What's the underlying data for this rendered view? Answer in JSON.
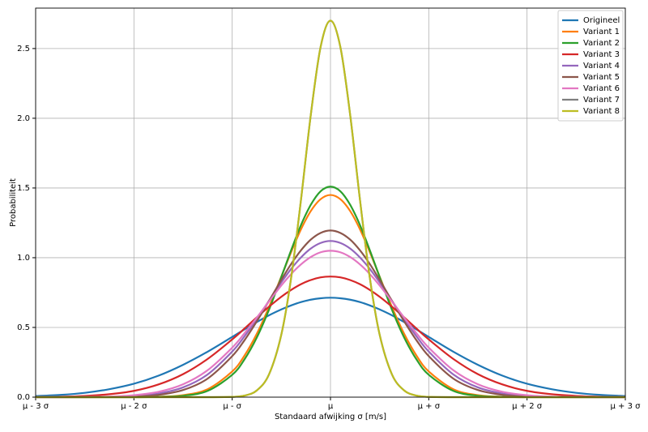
{
  "chart_data": {
    "type": "line",
    "xlabel": "Standaard afwijking σ [m/s]",
    "ylabel": "Probabiliteit",
    "x": [
      -3,
      -2.75,
      -2.5,
      -2.25,
      -2,
      -1.75,
      -1.5,
      -1.25,
      -1,
      -0.875,
      -0.75,
      -0.625,
      -0.5,
      -0.4,
      -0.3,
      -0.2,
      -0.1,
      0,
      0.1,
      0.2,
      0.3,
      0.4,
      0.5,
      0.625,
      0.75,
      0.875,
      1,
      1.25,
      1.5,
      1.75,
      2,
      2.25,
      2.5,
      2.75,
      3
    ],
    "xlim": [
      -3,
      3
    ],
    "xticks": [
      {
        "value": -3,
        "label": "μ - 3 σ"
      },
      {
        "value": -2,
        "label": "μ - 2 σ"
      },
      {
        "value": -1,
        "label": "μ - σ"
      },
      {
        "value": 0,
        "label": "μ"
      },
      {
        "value": 1,
        "label": "μ + σ"
      },
      {
        "value": 2,
        "label": "μ + 2 σ"
      },
      {
        "value": 3,
        "label": "μ + 3 σ"
      }
    ],
    "ylim": [
      0,
      2.79
    ],
    "yticks": [
      {
        "value": 0,
        "label": "0.0"
      },
      0.5,
      {
        "value": 1,
        "label": "1.0"
      },
      1.5,
      {
        "value": 2,
        "label": "2.0"
      },
      2.5
    ],
    "grid": true,
    "legend": "upper right",
    "series": [
      {
        "name": "Origineel",
        "color": "#1f77b4",
        "values": [
          0.008,
          0.016,
          0.031,
          0.057,
          0.096,
          0.154,
          0.232,
          0.326,
          0.432,
          0.486,
          0.538,
          0.587,
          0.629,
          0.658,
          0.682,
          0.699,
          0.709,
          0.713,
          0.709,
          0.699,
          0.682,
          0.658,
          0.629,
          0.587,
          0.538,
          0.486,
          0.432,
          0.326,
          0.232,
          0.154,
          0.096,
          0.057,
          0.031,
          0.016,
          0.008
        ]
      },
      {
        "name": "Variant 1",
        "color": "#ff7f0e",
        "values": [
          0,
          0,
          0,
          0,
          0,
          0.003,
          0.014,
          0.057,
          0.184,
          0.298,
          0.454,
          0.647,
          0.865,
          1.041,
          1.204,
          1.335,
          1.42,
          1.45,
          1.42,
          1.335,
          1.204,
          1.041,
          0.865,
          0.647,
          0.454,
          0.298,
          0.184,
          0.057,
          0.014,
          0.003,
          0,
          0,
          0,
          0,
          0
        ]
      },
      {
        "name": "Variant 2",
        "color": "#2ca02c",
        "values": [
          0,
          0,
          0,
          0,
          0,
          0.002,
          0.01,
          0.045,
          0.16,
          0.271,
          0.427,
          0.628,
          0.862,
          1.054,
          1.234,
          1.38,
          1.477,
          1.51,
          1.477,
          1.38,
          1.234,
          1.054,
          0.862,
          0.628,
          0.427,
          0.271,
          0.16,
          0.045,
          0.01,
          0.002,
          0,
          0,
          0,
          0,
          0
        ]
      },
      {
        "name": "Variant 3",
        "color": "#d62728",
        "values": [
          0.001,
          0.003,
          0.009,
          0.021,
          0.045,
          0.091,
          0.165,
          0.274,
          0.414,
          0.492,
          0.572,
          0.649,
          0.72,
          0.769,
          0.81,
          0.84,
          0.859,
          0.865,
          0.859,
          0.84,
          0.81,
          0.769,
          0.72,
          0.649,
          0.572,
          0.492,
          0.414,
          0.274,
          0.165,
          0.091,
          0.045,
          0.021,
          0.009,
          0.003,
          0.001
        ]
      },
      {
        "name": "Variant 4",
        "color": "#9467bd",
        "values": [
          0,
          0,
          0.001,
          0.002,
          0.008,
          0.026,
          0.07,
          0.163,
          0.327,
          0.436,
          0.56,
          0.692,
          0.823,
          0.92,
          1.002,
          1.066,
          1.106,
          1.12,
          1.106,
          1.066,
          1.002,
          0.92,
          0.823,
          0.692,
          0.56,
          0.436,
          0.327,
          0.163,
          0.07,
          0.026,
          0.008,
          0.002,
          0.001,
          0,
          0
        ]
      },
      {
        "name": "Variant 5",
        "color": "#8c564b",
        "values": [
          0,
          0,
          0,
          0.001,
          0.004,
          0.016,
          0.051,
          0.133,
          0.294,
          0.408,
          0.543,
          0.691,
          0.841,
          0.955,
          1.053,
          1.13,
          1.178,
          1.195,
          1.178,
          1.13,
          1.053,
          0.955,
          0.841,
          0.691,
          0.543,
          0.408,
          0.294,
          0.133,
          0.051,
          0.016,
          0.004,
          0.001,
          0,
          0,
          0
        ]
      },
      {
        "name": "Variant 6",
        "color": "#e377c2",
        "values": [
          0,
          0,
          0.001,
          0.004,
          0.014,
          0.038,
          0.092,
          0.193,
          0.355,
          0.458,
          0.57,
          0.687,
          0.801,
          0.883,
          0.952,
          1.005,
          1.039,
          1.05,
          1.039,
          1.005,
          0.952,
          0.883,
          0.801,
          0.687,
          0.57,
          0.458,
          0.355,
          0.193,
          0.092,
          0.038,
          0.014,
          0.004,
          0.001,
          0,
          0
        ]
      },
      {
        "name": "Variant 7",
        "color": "#7f7f7f",
        "values": [
          0,
          0,
          0,
          0,
          0,
          0,
          0,
          0,
          0.002,
          0.011,
          0.048,
          0.164,
          0.449,
          0.857,
          1.416,
          2.026,
          2.513,
          2.7,
          2.513,
          2.026,
          1.416,
          0.857,
          0.449,
          0.164,
          0.048,
          0.011,
          0.002,
          0,
          0,
          0,
          0,
          0,
          0,
          0,
          0
        ]
      },
      {
        "name": "Variant 8",
        "color": "#bcbd22",
        "values": [
          0,
          0,
          0,
          0,
          0,
          0,
          0,
          0,
          0.002,
          0.011,
          0.048,
          0.164,
          0.449,
          0.857,
          1.416,
          2.026,
          2.513,
          2.7,
          2.513,
          2.026,
          1.416,
          0.857,
          0.449,
          0.164,
          0.048,
          0.011,
          0.002,
          0,
          0,
          0,
          0,
          0,
          0,
          0,
          0
        ]
      }
    ]
  }
}
